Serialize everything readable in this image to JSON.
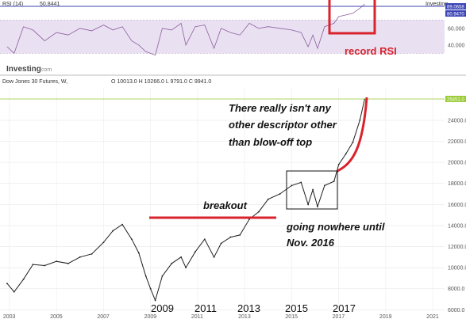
{
  "rsi_panel": {
    "label": "RSI (14)",
    "value": "50.8441",
    "right_tag_top": "89.0658",
    "right_tag_2": "80.9470",
    "brand": "Investing",
    "brand_suffix": ".com",
    "annotation": "record RSI",
    "top_right_note": "Investing"
  },
  "main_panel": {
    "symbol": "Dow Jones 30 Futures, W,",
    "ohlc": "O 10013.0 H 10266.0 L 9791.0 C 9941.0",
    "last_tag": "25451.0"
  },
  "annotations": {
    "blowoff_line1": "There really isn't any",
    "blowoff_line2": "other descriptor other",
    "blowoff_line3": "than blow-off top",
    "breakout": "breakout",
    "nowhere_line1": "going nowhere until",
    "nowhere_line2": "Nov. 2016",
    "year_2009": "2009",
    "year_2011": "2011",
    "year_2013": "2013",
    "year_2015": "2015",
    "year_2017": "2017"
  },
  "colors": {
    "price": "#1f1f1f",
    "rsi_line": "#8e5d9f",
    "rsi_band": "#e9e1f2",
    "annotation_red": "#d9232c",
    "last_price_green": "#9ccc38"
  },
  "chart_data": [
    {
      "type": "line",
      "title": "Dow Jones 30 Futures, W,",
      "x": [
        2002.9,
        2003.2,
        2003.6,
        2004.0,
        2004.5,
        2005.0,
        2005.5,
        2006.0,
        2006.5,
        2007.0,
        2007.4,
        2007.8,
        2008.2,
        2008.5,
        2008.8,
        2009.0,
        2009.2,
        2009.5,
        2009.9,
        2010.3,
        2010.5,
        2010.9,
        2011.3,
        2011.7,
        2012.0,
        2012.4,
        2012.8,
        2013.2,
        2013.6,
        2014.0,
        2014.5,
        2015.0,
        2015.4,
        2015.7,
        2015.9,
        2016.1,
        2016.4,
        2016.8,
        2017.0,
        2017.3,
        2017.6,
        2017.9,
        2018.1
      ],
      "y": [
        8500,
        7700,
        8900,
        10300,
        10200,
        10600,
        10400,
        11000,
        11300,
        12400,
        13500,
        14100,
        12700,
        11400,
        9200,
        8000,
        6900,
        9200,
        10400,
        11000,
        10000,
        11500,
        12700,
        11000,
        12300,
        12900,
        13100,
        14600,
        15300,
        16500,
        17000,
        17800,
        18100,
        16000,
        17400,
        15800,
        17800,
        18200,
        19800,
        20800,
        21900,
        24000,
        26000
      ],
      "xlabel": "",
      "ylabel": "",
      "xlim": [
        2002.6,
        2021.5
      ],
      "ylim": [
        5500,
        27000
      ],
      "x_ticks": [
        "2003",
        "2005",
        "2007",
        "2009",
        "2011",
        "2013",
        "2015",
        "2017",
        "2019",
        "2021"
      ],
      "y_ticks": [
        "6000.0",
        "8000.0",
        "10000.0",
        "12000.0",
        "14000.0",
        "16000.0",
        "18000.0",
        "20000.0",
        "22000.0",
        "24000.0",
        "26000.0"
      ],
      "grid": true,
      "last_value": 25451.0
    },
    {
      "type": "line",
      "title": "RSI (14)",
      "x": [
        2002.9,
        2003.2,
        2003.6,
        2004.0,
        2004.5,
        2005.0,
        2005.5,
        2006.0,
        2006.5,
        2007.0,
        2007.4,
        2007.8,
        2008.2,
        2008.5,
        2008.8,
        2009.0,
        2009.2,
        2009.5,
        2009.9,
        2010.3,
        2010.5,
        2010.9,
        2011.3,
        2011.7,
        2012.0,
        2012.4,
        2012.8,
        2013.2,
        2013.6,
        2014.0,
        2014.5,
        2015.0,
        2015.4,
        2015.7,
        2015.9,
        2016.1,
        2016.4,
        2016.8,
        2017.0,
        2017.3,
        2017.6,
        2017.9,
        2018.1
      ],
      "y": [
        38,
        30,
        62,
        58,
        45,
        55,
        52,
        60,
        57,
        64,
        58,
        62,
        45,
        40,
        32,
        30,
        28,
        60,
        58,
        66,
        40,
        62,
        64,
        36,
        60,
        55,
        52,
        66,
        60,
        62,
        60,
        58,
        55,
        38,
        52,
        36,
        62,
        66,
        74,
        76,
        78,
        84,
        89
      ],
      "ylim": [
        20,
        92
      ],
      "y_ticks": [
        "40.000",
        "60.000"
      ],
      "band": [
        30,
        70
      ],
      "last_value": 89.0658
    }
  ]
}
